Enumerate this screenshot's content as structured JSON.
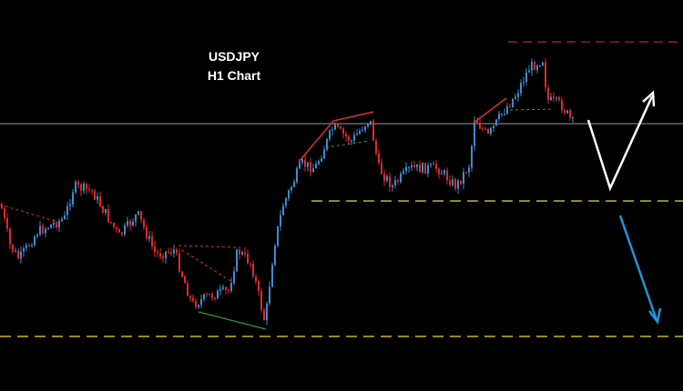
{
  "header": {
    "symbol": "USDJPY",
    "timeframe": "H1 Chart"
  }
}
